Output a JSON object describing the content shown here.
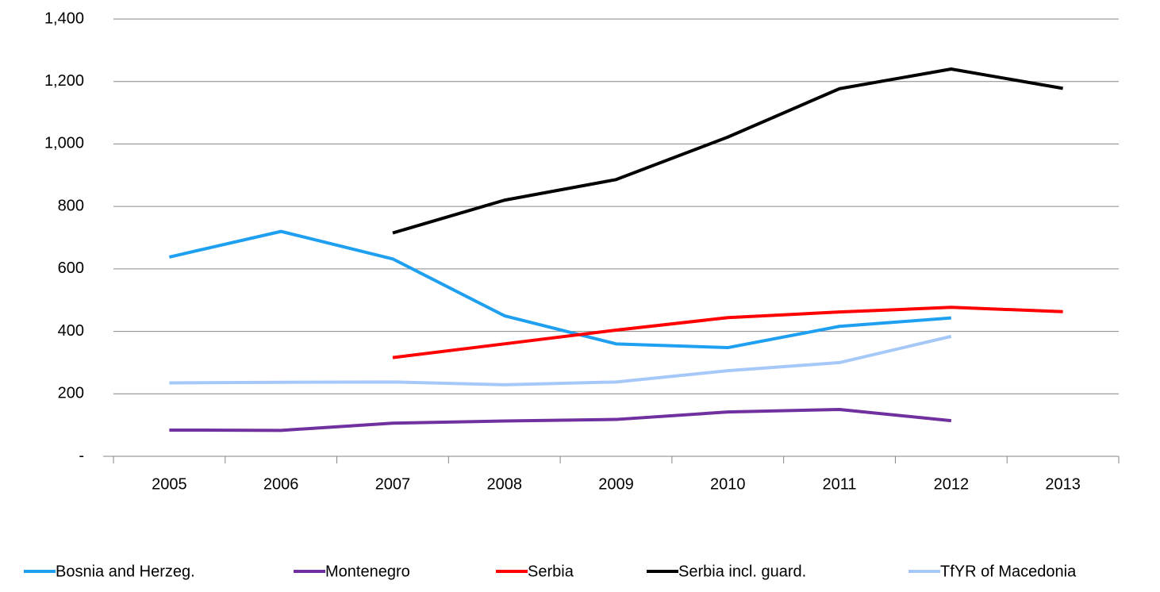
{
  "chart_data": {
    "type": "line",
    "categories": [
      "2005",
      "2006",
      "2007",
      "2008",
      "2009",
      "2010",
      "2011",
      "2012",
      "2013"
    ],
    "series": [
      {
        "name": "Bosnia and Herzeg.",
        "color": "#1f9ff0",
        "values": [
          638,
          720,
          632,
          450,
          360,
          348,
          416,
          443,
          null
        ]
      },
      {
        "name": "Montenegro",
        "color": "#7030a0",
        "values": [
          84,
          83,
          106,
          113,
          118,
          142,
          150,
          114,
          null
        ]
      },
      {
        "name": "Serbia",
        "color": "#ff0000",
        "values": [
          null,
          null,
          316,
          360,
          404,
          444,
          462,
          477,
          463
        ]
      },
      {
        "name": "Serbia incl. guard.",
        "color": "#000000",
        "values": [
          null,
          null,
          715,
          820,
          886,
          1022,
          1177,
          1240,
          1178
        ]
      },
      {
        "name": "TfYR of Macedonia",
        "color": "#a6c8f8",
        "values": [
          235,
          237,
          238,
          229,
          238,
          274,
          300,
          384,
          null
        ]
      }
    ],
    "ylim": [
      0,
      1400
    ],
    "yticks": [
      {
        "value": 0,
        "label": "-"
      },
      200,
      400,
      600,
      800,
      {
        "value": 1000,
        "label": "1,000"
      },
      {
        "value": 1200,
        "label": "1,200"
      },
      {
        "value": 1400,
        "label": "1,400"
      }
    ],
    "grid": true,
    "legend": "bottom"
  }
}
